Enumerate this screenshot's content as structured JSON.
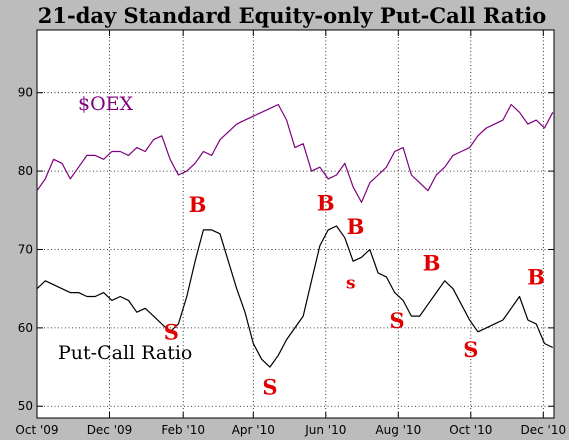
{
  "chart_data": {
    "type": "line",
    "title": "21-day Standard Equity-only Put-Call Ratio",
    "x_ticks": [
      "Oct '09",
      "Dec '09",
      "Feb '10",
      "Apr '10",
      "Jun '10",
      "Aug '10",
      "Oct '10",
      "Dec '10"
    ],
    "x_range": [
      "2009-10-01",
      "2010-12-10"
    ],
    "ylim": [
      48.5,
      98
    ],
    "y_ticks": [
      50,
      60,
      70,
      80,
      90
    ],
    "grid": true,
    "colors": {
      "oex": "#800080",
      "pcr": "#000000",
      "signals": "#e00000",
      "background": "#bcbcbc",
      "plot": "#ffffff"
    },
    "series": [
      {
        "name": "$OEX",
        "label": "$OEX",
        "x": [
          "2009-10-01",
          "2009-10-08",
          "2009-10-15",
          "2009-10-22",
          "2009-10-29",
          "2009-11-05",
          "2009-11-12",
          "2009-11-19",
          "2009-11-26",
          "2009-12-03",
          "2009-12-10",
          "2009-12-17",
          "2009-12-24",
          "2009-12-31",
          "2010-01-07",
          "2010-01-14",
          "2010-01-21",
          "2010-01-28",
          "2010-02-04",
          "2010-02-11",
          "2010-02-18",
          "2010-02-25",
          "2010-03-04",
          "2010-03-11",
          "2010-03-18",
          "2010-03-25",
          "2010-04-01",
          "2010-04-08",
          "2010-04-15",
          "2010-04-22",
          "2010-04-29",
          "2010-05-06",
          "2010-05-13",
          "2010-05-20",
          "2010-05-27",
          "2010-06-03",
          "2010-06-10",
          "2010-06-17",
          "2010-06-24",
          "2010-07-01",
          "2010-07-08",
          "2010-07-15",
          "2010-07-22",
          "2010-07-29",
          "2010-08-05",
          "2010-08-12",
          "2010-08-19",
          "2010-08-26",
          "2010-09-02",
          "2010-09-09",
          "2010-09-16",
          "2010-09-23",
          "2010-09-30",
          "2010-10-07",
          "2010-10-14",
          "2010-10-21",
          "2010-10-28",
          "2010-11-04",
          "2010-11-11",
          "2010-11-18",
          "2010-11-25",
          "2010-12-02",
          "2010-12-09"
        ],
        "values": [
          77.5,
          79.0,
          81.5,
          81.0,
          79.0,
          80.5,
          82.0,
          82.0,
          81.5,
          82.5,
          82.5,
          82.0,
          83.0,
          82.5,
          84.0,
          84.5,
          81.5,
          79.5,
          80.0,
          81.0,
          82.5,
          82.0,
          84.0,
          85.0,
          86.0,
          86.5,
          87.0,
          87.5,
          88.0,
          88.5,
          86.5,
          83.0,
          83.5,
          80.0,
          80.5,
          79.0,
          79.5,
          81.0,
          78.0,
          76.0,
          78.5,
          79.5,
          80.5,
          82.5,
          83.0,
          79.5,
          78.5,
          77.5,
          79.5,
          80.5,
          82.0,
          82.5,
          83.0,
          84.5,
          85.5,
          86.0,
          86.5,
          88.5,
          87.5,
          86.0,
          86.5,
          85.5,
          87.5
        ]
      },
      {
        "name": "Put-Call Ratio",
        "label": "Put-Call Ratio",
        "x": [
          "2009-10-01",
          "2009-10-08",
          "2009-10-15",
          "2009-10-22",
          "2009-10-29",
          "2009-11-05",
          "2009-11-12",
          "2009-11-19",
          "2009-11-26",
          "2009-12-03",
          "2009-12-10",
          "2009-12-17",
          "2009-12-24",
          "2009-12-31",
          "2010-01-07",
          "2010-01-14",
          "2010-01-21",
          "2010-01-28",
          "2010-02-04",
          "2010-02-11",
          "2010-02-18",
          "2010-02-25",
          "2010-03-04",
          "2010-03-11",
          "2010-03-18",
          "2010-03-25",
          "2010-04-01",
          "2010-04-08",
          "2010-04-15",
          "2010-04-22",
          "2010-04-29",
          "2010-05-06",
          "2010-05-13",
          "2010-05-20",
          "2010-05-27",
          "2010-06-03",
          "2010-06-10",
          "2010-06-17",
          "2010-06-24",
          "2010-07-01",
          "2010-07-08",
          "2010-07-15",
          "2010-07-22",
          "2010-07-29",
          "2010-08-05",
          "2010-08-12",
          "2010-08-19",
          "2010-08-26",
          "2010-09-02",
          "2010-09-09",
          "2010-09-16",
          "2010-09-23",
          "2010-09-30",
          "2010-10-07",
          "2010-10-14",
          "2010-10-21",
          "2010-10-28",
          "2010-11-04",
          "2010-11-11",
          "2010-11-18",
          "2010-11-25",
          "2010-12-02",
          "2010-12-09"
        ],
        "values": [
          65.0,
          66.0,
          65.5,
          65.0,
          64.5,
          64.5,
          64.0,
          64.0,
          64.5,
          63.5,
          64.0,
          63.5,
          62.0,
          62.5,
          61.5,
          60.5,
          59.5,
          60.5,
          64.0,
          68.5,
          72.5,
          72.5,
          72.0,
          68.5,
          65.0,
          62.0,
          58.0,
          56.0,
          55.0,
          56.5,
          58.5,
          60.0,
          61.5,
          66.0,
          70.5,
          72.5,
          73.0,
          71.5,
          68.5,
          69.0,
          70.0,
          67.0,
          66.5,
          64.5,
          63.5,
          61.5,
          61.5,
          63.0,
          64.5,
          66.0,
          65.0,
          63.0,
          61.0,
          59.5,
          60.0,
          60.5,
          61.0,
          62.5,
          64.0,
          61.0,
          60.5,
          58.0,
          57.5
        ]
      }
    ],
    "series_labels": {
      "oex": "$OEX",
      "pcr": "Put-Call Ratio"
    },
    "annotations": [
      {
        "text": "S",
        "x": "2010-01-22",
        "y": 58.5
      },
      {
        "text": "B",
        "x": "2010-02-13",
        "y": 74.8
      },
      {
        "text": "S",
        "x": "2010-04-15",
        "y": 51.5
      },
      {
        "text": "B",
        "x": "2010-06-01",
        "y": 75.0
      },
      {
        "text": "B",
        "x": "2010-06-26",
        "y": 72.0
      },
      {
        "text": "s",
        "x": "2010-06-22",
        "y": 65.0
      },
      {
        "text": "S",
        "x": "2010-07-31",
        "y": 60.0
      },
      {
        "text": "B",
        "x": "2010-08-29",
        "y": 67.3
      },
      {
        "text": "S",
        "x": "2010-10-01",
        "y": 56.3
      },
      {
        "text": "B",
        "x": "2010-11-25",
        "y": 65.5
      }
    ]
  }
}
